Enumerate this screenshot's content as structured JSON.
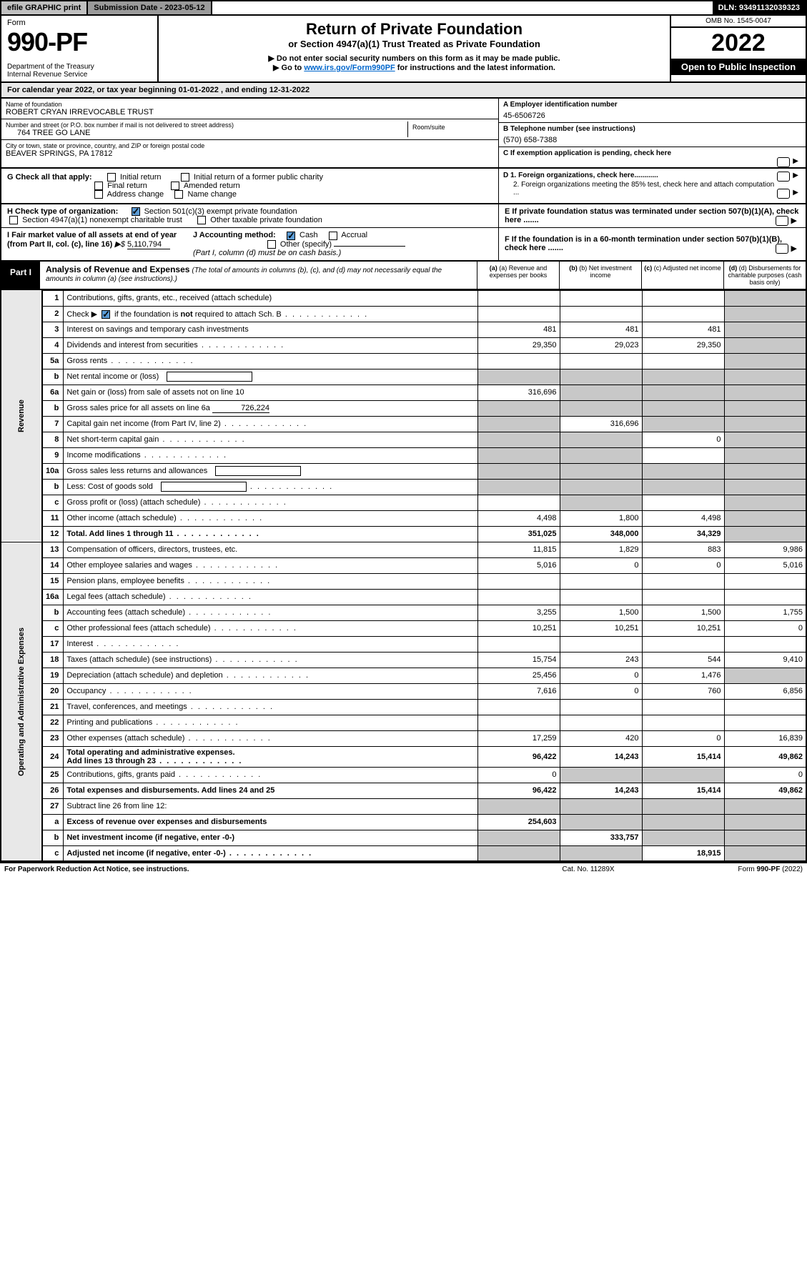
{
  "topbar": {
    "efile": "efile GRAPHIC print",
    "subdate_label": "Submission Date - 2023-05-12",
    "dln": "DLN: 93491132039323"
  },
  "header": {
    "form_word": "Form",
    "form_no": "990-PF",
    "dept": "Department of the Treasury\nInternal Revenue Service",
    "title": "Return of Private Foundation",
    "sub1": "or Section 4947(a)(1) Trust Treated as Private Foundation",
    "sub2": "▶ Do not enter social security numbers on this form as it may be made public.",
    "sub3_pre": "▶ Go to ",
    "sub3_link": "www.irs.gov/Form990PF",
    "sub3_post": " for instructions and the latest information.",
    "omb": "OMB No. 1545-0047",
    "year": "2022",
    "otp": "Open to Public Inspection"
  },
  "calendar_row": "For calendar year 2022, or tax year beginning 01-01-2022                          , and ending 12-31-2022",
  "foundation": {
    "name_label": "Name of foundation",
    "name": "ROBERT CRYAN IRREVOCABLE TRUST",
    "addr_label": "Number and street (or P.O. box number if mail is not delivered to street address)",
    "addr": "764 TREE GO LANE",
    "room_label": "Room/suite",
    "city_label": "City or town, state or province, country, and ZIP or foreign postal code",
    "city": "BEAVER SPRINGS, PA  17812"
  },
  "right_block": {
    "a_label": "A Employer identification number",
    "a_val": "45-6506726",
    "b_label": "B Telephone number (see instructions)",
    "b_val": "(570) 658-7388",
    "c_label": "C If exemption application is pending, check here",
    "d1": "D 1. Foreign organizations, check here............",
    "d2": "2. Foreign organizations meeting the 85% test, check here and attach computation ...",
    "e": "E  If private foundation status was terminated under section 507(b)(1)(A), check here .......",
    "f": "F  If the foundation is in a 60-month termination under section 507(b)(1)(B), check here .......",
    "arrow": "▶"
  },
  "section_g": {
    "label": "G Check all that apply:",
    "initial": "Initial return",
    "initial_former": "Initial return of a former public charity",
    "final": "Final return",
    "amended": "Amended return",
    "addr_change": "Address change",
    "name_change": "Name change"
  },
  "section_h": {
    "label": "H Check type of organization:",
    "opt1": "Section 501(c)(3) exempt private foundation",
    "opt2": "Section 4947(a)(1) nonexempt charitable trust",
    "opt3": "Other taxable private foundation"
  },
  "section_i": {
    "label": "I Fair market value of all assets at end of year (from Part II, col. (c), line 16)",
    "arrow": "▶$",
    "val": "5,110,794"
  },
  "section_j": {
    "label": "J Accounting method:",
    "cash": "Cash",
    "accrual": "Accrual",
    "other": "Other (specify)",
    "note": "(Part I, column (d) must be on cash basis.)"
  },
  "part1": {
    "label": "Part I",
    "title": "Analysis of Revenue and Expenses",
    "note": "(The total of amounts in columns (b), (c), and (d) may not necessarily equal the amounts in column (a) (see instructions).)",
    "col_a": "(a)  Revenue and expenses per books",
    "col_b": "(b)  Net investment income",
    "col_c": "(c)  Adjusted net income",
    "col_d": "(d)  Disbursements for charitable purposes (cash basis only)"
  },
  "side_labels": {
    "revenue": "Revenue",
    "opex": "Operating and Administrative Expenses"
  },
  "rows": {
    "r1": {
      "n": "1",
      "d": "Contributions, gifts, grants, etc., received (attach schedule)",
      "a": "",
      "b": "",
      "c": "",
      "dd": "",
      "grey_d": true
    },
    "r2": {
      "n": "2",
      "d": "Check ▶ ☑ if the foundation is not required to attach Sch. B",
      "dots": true,
      "a": "",
      "b": "",
      "c": "",
      "dd": "",
      "grey_d": true,
      "bold_not": true
    },
    "r3": {
      "n": "3",
      "d": "Interest on savings and temporary cash investments",
      "a": "481",
      "b": "481",
      "c": "481",
      "dd": "",
      "grey_d": true
    },
    "r4": {
      "n": "4",
      "d": "Dividends and interest from securities",
      "dots": true,
      "a": "29,350",
      "b": "29,023",
      "c": "29,350",
      "dd": "",
      "grey_d": true
    },
    "r5a": {
      "n": "5a",
      "d": "Gross rents",
      "dots": true,
      "a": "",
      "b": "",
      "c": "",
      "dd": "",
      "grey_d": true
    },
    "r5b": {
      "n": "b",
      "d": "Net rental income or (loss)",
      "inline_box": true,
      "a": "",
      "b": "",
      "c": "",
      "dd": "",
      "grey_a": true,
      "grey_b": true,
      "grey_c": true,
      "grey_d": true
    },
    "r6a": {
      "n": "6a",
      "d": "Net gain or (loss) from sale of assets not on line 10",
      "a": "316,696",
      "b": "",
      "c": "",
      "dd": "",
      "grey_b": true,
      "grey_c": true,
      "grey_d": true
    },
    "r6b": {
      "n": "b",
      "d": "Gross sales price for all assets on line 6a",
      "inline_val": "726,224",
      "a": "",
      "b": "",
      "c": "",
      "dd": "",
      "grey_a": true,
      "grey_b": true,
      "grey_c": true,
      "grey_d": true
    },
    "r7": {
      "n": "7",
      "d": "Capital gain net income (from Part IV, line 2)",
      "dots": true,
      "a": "",
      "b": "316,696",
      "c": "",
      "dd": "",
      "grey_a": true,
      "grey_c": true,
      "grey_d": true
    },
    "r8": {
      "n": "8",
      "d": "Net short-term capital gain",
      "dots": true,
      "a": "",
      "b": "",
      "c": "0",
      "dd": "",
      "grey_a": true,
      "grey_b": true,
      "grey_d": true
    },
    "r9": {
      "n": "9",
      "d": "Income modifications",
      "dots": true,
      "a": "",
      "b": "",
      "c": "",
      "dd": "",
      "grey_a": true,
      "grey_b": true,
      "grey_d": true
    },
    "r10a": {
      "n": "10a",
      "d": "Gross sales less returns and allowances",
      "inline_box": true,
      "a": "",
      "b": "",
      "c": "",
      "dd": "",
      "grey_a": true,
      "grey_b": true,
      "grey_c": true,
      "grey_d": true
    },
    "r10b": {
      "n": "b",
      "d": "Less: Cost of goods sold",
      "dots": true,
      "inline_box": true,
      "a": "",
      "b": "",
      "c": "",
      "dd": "",
      "grey_a": true,
      "grey_b": true,
      "grey_c": true,
      "grey_d": true
    },
    "r10c": {
      "n": "c",
      "d": "Gross profit or (loss) (attach schedule)",
      "dots": true,
      "a": "",
      "b": "",
      "c": "",
      "dd": "",
      "grey_b": true,
      "grey_d": true
    },
    "r11": {
      "n": "11",
      "d": "Other income (attach schedule)",
      "dots": true,
      "a": "4,498",
      "b": "1,800",
      "c": "4,498",
      "dd": "",
      "grey_d": true
    },
    "r12": {
      "n": "12",
      "d": "Total. Add lines 1 through 11",
      "dots": true,
      "a": "351,025",
      "b": "348,000",
      "c": "34,329",
      "dd": "",
      "grey_d": true,
      "bold": true
    },
    "r13": {
      "n": "13",
      "d": "Compensation of officers, directors, trustees, etc.",
      "a": "11,815",
      "b": "1,829",
      "c": "883",
      "dd": "9,986"
    },
    "r14": {
      "n": "14",
      "d": "Other employee salaries and wages",
      "dots": true,
      "a": "5,016",
      "b": "0",
      "c": "0",
      "dd": "5,016"
    },
    "r15": {
      "n": "15",
      "d": "Pension plans, employee benefits",
      "dots": true,
      "a": "",
      "b": "",
      "c": "",
      "dd": ""
    },
    "r16a": {
      "n": "16a",
      "d": "Legal fees (attach schedule)",
      "dots": true,
      "a": "",
      "b": "",
      "c": "",
      "dd": ""
    },
    "r16b": {
      "n": "b",
      "d": "Accounting fees (attach schedule)",
      "dots": true,
      "a": "3,255",
      "b": "1,500",
      "c": "1,500",
      "dd": "1,755"
    },
    "r16c": {
      "n": "c",
      "d": "Other professional fees (attach schedule)",
      "dots": true,
      "a": "10,251",
      "b": "10,251",
      "c": "10,251",
      "dd": "0"
    },
    "r17": {
      "n": "17",
      "d": "Interest",
      "dots": true,
      "a": "",
      "b": "",
      "c": "",
      "dd": ""
    },
    "r18": {
      "n": "18",
      "d": "Taxes (attach schedule) (see instructions)",
      "dots": true,
      "a": "15,754",
      "b": "243",
      "c": "544",
      "dd": "9,410"
    },
    "r19": {
      "n": "19",
      "d": "Depreciation (attach schedule) and depletion",
      "dots": true,
      "a": "25,456",
      "b": "0",
      "c": "1,476",
      "dd": "",
      "grey_d": true
    },
    "r20": {
      "n": "20",
      "d": "Occupancy",
      "dots": true,
      "a": "7,616",
      "b": "0",
      "c": "760",
      "dd": "6,856"
    },
    "r21": {
      "n": "21",
      "d": "Travel, conferences, and meetings",
      "dots": true,
      "a": "",
      "b": "",
      "c": "",
      "dd": ""
    },
    "r22": {
      "n": "22",
      "d": "Printing and publications",
      "dots": true,
      "a": "",
      "b": "",
      "c": "",
      "dd": ""
    },
    "r23": {
      "n": "23",
      "d": "Other expenses (attach schedule)",
      "dots": true,
      "a": "17,259",
      "b": "420",
      "c": "0",
      "dd": "16,839"
    },
    "r24": {
      "n": "24",
      "d": "Total operating and administrative expenses.",
      "d2": "Add lines 13 through 23",
      "dots": true,
      "a": "96,422",
      "b": "14,243",
      "c": "15,414",
      "dd": "49,862",
      "bold": true
    },
    "r25": {
      "n": "25",
      "d": "Contributions, gifts, grants paid",
      "dots": true,
      "a": "0",
      "b": "",
      "c": "",
      "dd": "0",
      "grey_b": true,
      "grey_c": true
    },
    "r26": {
      "n": "26",
      "d": "Total expenses and disbursements. Add lines 24 and 25",
      "a": "96,422",
      "b": "14,243",
      "c": "15,414",
      "dd": "49,862",
      "bold": true
    },
    "r27": {
      "n": "27",
      "d": "Subtract line 26 from line 12:",
      "a": "",
      "b": "",
      "c": "",
      "dd": "",
      "grey_a": true,
      "grey_b": true,
      "grey_c": true,
      "grey_d": true
    },
    "r27a": {
      "n": "a",
      "d": "Excess of revenue over expenses and disbursements",
      "a": "254,603",
      "b": "",
      "c": "",
      "dd": "",
      "grey_b": true,
      "grey_c": true,
      "grey_d": true,
      "bold": true
    },
    "r27b": {
      "n": "b",
      "d": "Net investment income (if negative, enter -0-)",
      "a": "",
      "b": "333,757",
      "c": "",
      "dd": "",
      "grey_a": true,
      "grey_c": true,
      "grey_d": true,
      "bold": true
    },
    "r27c": {
      "n": "c",
      "d": "Adjusted net income (if negative, enter -0-)",
      "dots": true,
      "a": "",
      "b": "",
      "c": "18,915",
      "dd": "",
      "grey_a": true,
      "grey_b": true,
      "grey_d": true,
      "bold": true
    }
  },
  "footer": {
    "left": "For Paperwork Reduction Act Notice, see instructions.",
    "mid": "Cat. No. 11289X",
    "right": "Form 990-PF (2022)"
  },
  "colors": {
    "black": "#000000",
    "grey_bg": "#c8c8c8",
    "header_grey": "#e8e8e8",
    "link": "#0066cc",
    "check_blue": "#5b9bd5"
  }
}
